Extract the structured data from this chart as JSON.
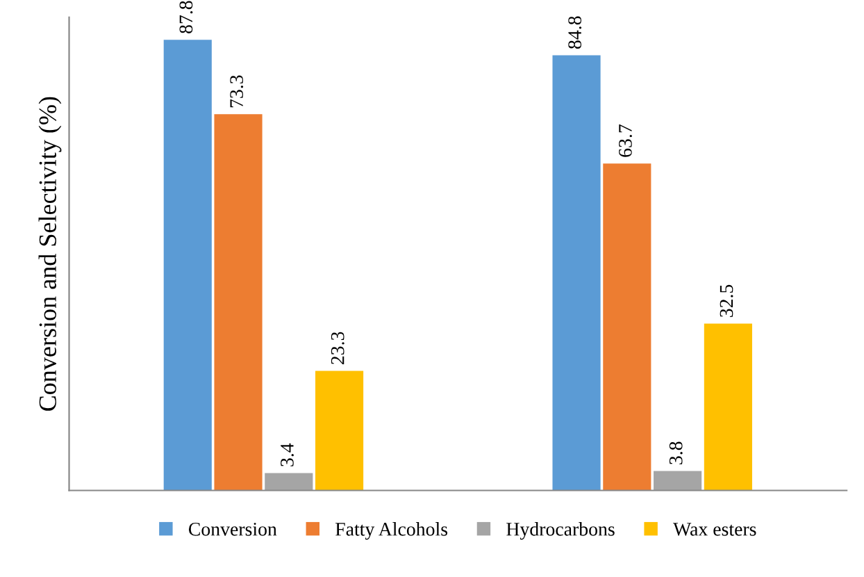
{
  "chart_data": {
    "type": "bar",
    "ylabel": "Conversion and Selectivity (%)",
    "categories": [
      null,
      null
    ],
    "series": [
      {
        "name": "Conversion",
        "color": "#5b9bd5",
        "values": [
          87.8,
          84.8
        ]
      },
      {
        "name": "Fatty Alcohols",
        "color": "#ed7d31",
        "values": [
          73.3,
          63.7
        ]
      },
      {
        "name": "Hydrocarbons",
        "color": "#a5a5a5",
        "values": [
          3.4,
          3.8
        ]
      },
      {
        "name": "Wax esters",
        "color": "#ffc000",
        "values": [
          23.3,
          32.5
        ]
      }
    ],
    "data_labels": true,
    "legend": "bottom",
    "tick_labels": false,
    "grid": false
  }
}
